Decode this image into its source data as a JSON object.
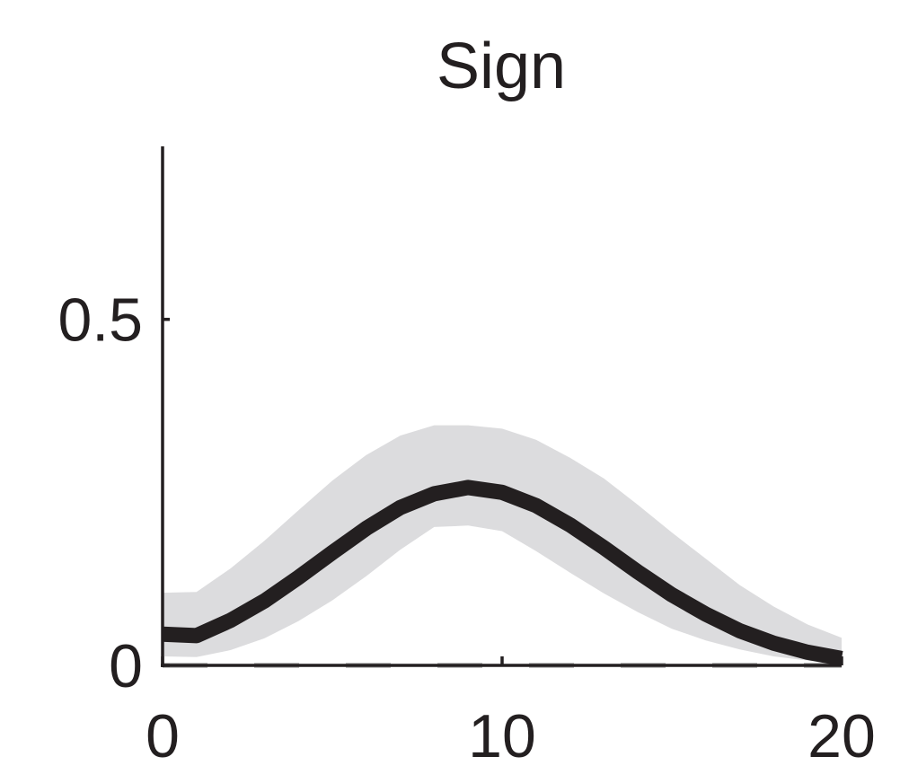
{
  "chart_data": {
    "type": "line",
    "title": "Sign",
    "xlabel": "",
    "ylabel": "",
    "xlim": [
      0,
      20
    ],
    "ylim": [
      0,
      0.75
    ],
    "x_ticks": [
      {
        "value": 0,
        "label": "0"
      },
      {
        "value": 10,
        "label": "10"
      },
      {
        "value": 20,
        "label": "20"
      }
    ],
    "y_ticks": [
      {
        "value": 0,
        "label": "0"
      },
      {
        "value": 0.5,
        "label": "0.5"
      }
    ],
    "grid": false,
    "legend": "none",
    "x": [
      0,
      1,
      2,
      3,
      4,
      5,
      6,
      7,
      8,
      9,
      10,
      11,
      12,
      13,
      14,
      15,
      16,
      17,
      18,
      19,
      20
    ],
    "series": [
      {
        "values": [
          0.045,
          0.043,
          0.065,
          0.093,
          0.127,
          0.163,
          0.198,
          0.228,
          0.248,
          0.257,
          0.25,
          0.231,
          0.203,
          0.17,
          0.135,
          0.102,
          0.074,
          0.05,
          0.032,
          0.019,
          0.01
        ],
        "lower": [
          0.013,
          0.012,
          0.022,
          0.039,
          0.064,
          0.094,
          0.129,
          0.167,
          0.2,
          0.202,
          0.194,
          0.165,
          0.134,
          0.104,
          0.077,
          0.053,
          0.036,
          0.023,
          0.013,
          0.007,
          0.003
        ],
        "upper": [
          0.105,
          0.106,
          0.14,
          0.18,
          0.224,
          0.267,
          0.304,
          0.332,
          0.347,
          0.347,
          0.342,
          0.326,
          0.3,
          0.27,
          0.232,
          0.192,
          0.154,
          0.116,
          0.085,
          0.059,
          0.04
        ]
      }
    ],
    "baseline": {
      "value": 0,
      "style": "dashed"
    },
    "colors": {
      "line": "#231f20",
      "band": "#dcdcde",
      "axis": "#231f20",
      "baseline": "#bdbdbd"
    }
  }
}
